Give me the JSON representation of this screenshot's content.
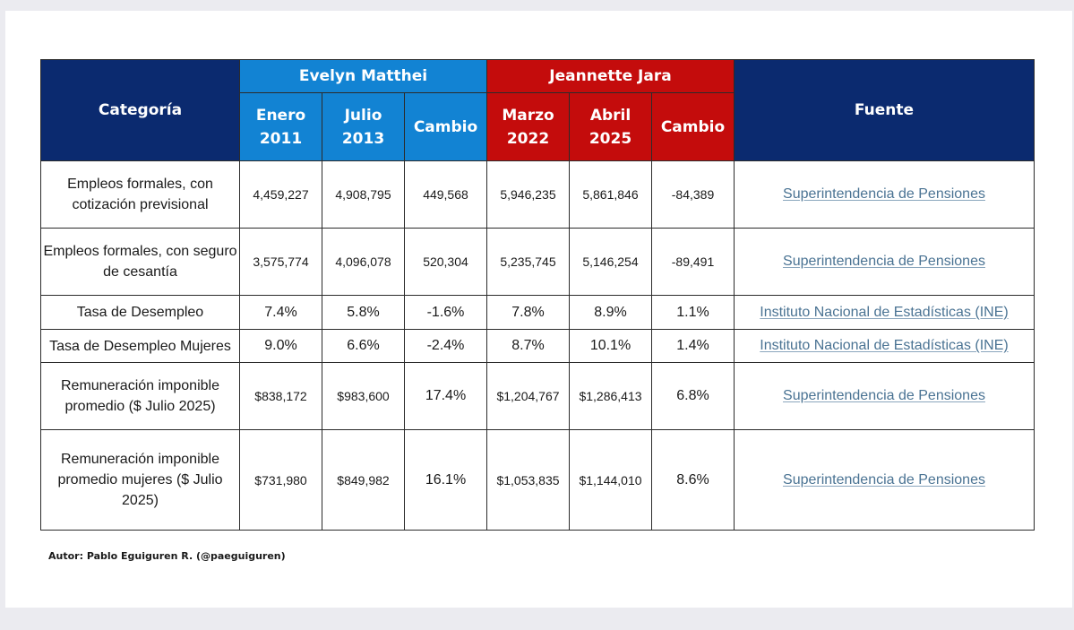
{
  "header": {
    "category": "Categoría",
    "source": "Fuente",
    "groups": [
      {
        "name": "Evelyn Matthei",
        "color": "#1283d3",
        "columns": [
          [
            "Enero",
            "2011"
          ],
          [
            "Julio",
            "2013"
          ],
          [
            "Cambio",
            ""
          ]
        ]
      },
      {
        "name": "Jeannette Jara",
        "color": "#c40c0c",
        "columns": [
          [
            "Marzo",
            "2022"
          ],
          [
            "Abril",
            "2025"
          ],
          [
            "Cambio",
            ""
          ]
        ]
      }
    ],
    "navy": "#0b2a6f"
  },
  "rows": [
    {
      "category": "Empleos formales, con cotización previsional",
      "values": [
        "4,459,227",
        "4,908,795",
        "449,568",
        "5,946,235",
        "5,861,846",
        "-84,389"
      ],
      "source": "Superintendencia de Pensiones"
    },
    {
      "category": "Empleos formales, con seguro de cesantía",
      "values": [
        "3,575,774",
        "4,096,078",
        "520,304",
        "5,235,745",
        "5,146,254",
        "-89,491"
      ],
      "source": "Superintendencia de Pensiones"
    },
    {
      "category": "Tasa de Desempleo",
      "values": [
        "7.4%",
        "5.8%",
        "-1.6%",
        "7.8%",
        "8.9%",
        "1.1%"
      ],
      "source": "Instituto Nacional de Estadísticas (INE)"
    },
    {
      "category": "Tasa de Desempleo Mujeres",
      "values": [
        "9.0%",
        "6.6%",
        "-2.4%",
        "8.7%",
        "10.1%",
        "1.4%"
      ],
      "source": "Instituto Nacional de Estadísticas (INE)"
    },
    {
      "category": "Remuneración imponible promedio ($ Julio 2025)",
      "values": [
        "$838,172",
        "$983,600",
        "17.4%",
        "$1,204,767",
        "$1,286,413",
        "6.8%"
      ],
      "source": "Superintendencia de Pensiones"
    },
    {
      "category": "Remuneración imponible promedio mujeres ($ Julio 2025)",
      "values": [
        "$731,980",
        "$849,982",
        "16.1%",
        "$1,053,835",
        "$1,144,010",
        "8.6%"
      ],
      "source": "Superintendencia de Pensiones"
    }
  ],
  "author": "Autor: Pablo Eguiguren R. (@paeguiguren)"
}
